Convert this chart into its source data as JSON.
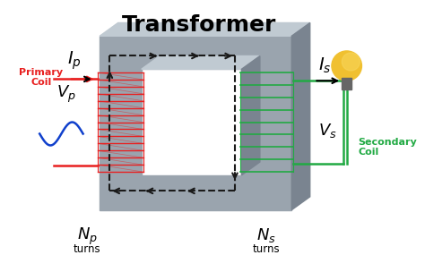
{
  "title": "Transformer",
  "title_fontsize": 18,
  "title_fontweight": "bold",
  "bg_color": "#ffffff",
  "core_color": "#9aa4ae",
  "core_top_color": "#c0cad2",
  "core_right_color": "#7a8490",
  "primary_coil_color": "#e82020",
  "secondary_coil_color": "#22aa44",
  "flux_color": "#1a1a1a",
  "Ip_label": "$I_p$",
  "Vp_label": "$V_p$",
  "Is_label": "$I_s$",
  "Vs_label": "$V_s$",
  "Np_label": "$N_p$",
  "Ns_label": "$N_s$",
  "turns_label": "turns",
  "primary_coil_label": "Primary\nCoil",
  "secondary_coil_label": "Secondary\nCoil"
}
